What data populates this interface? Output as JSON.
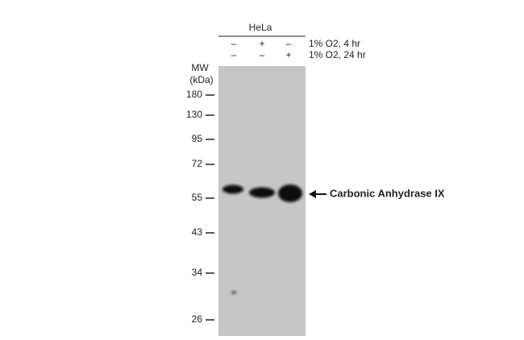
{
  "sample": "HeLa",
  "conditions": [
    {
      "label": "1% O2, 4 hr",
      "signs": [
        "–",
        "+",
        "–"
      ]
    },
    {
      "label": "1% O2, 24 hr",
      "signs": [
        "–",
        "–",
        "+"
      ]
    }
  ],
  "mw_title": [
    "MW",
    "(kDa)"
  ],
  "markers": [
    "180",
    "130",
    "95",
    "72",
    "55",
    "43",
    "34",
    "26"
  ],
  "band_label": "Carbonic Anhydrase IX"
}
